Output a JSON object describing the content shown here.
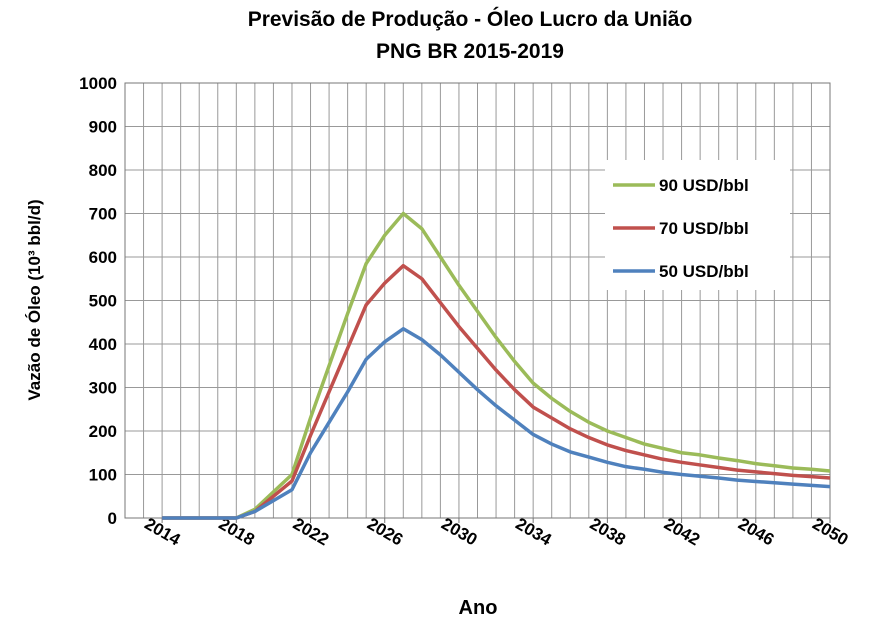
{
  "chart_data": {
    "type": "line",
    "title": "Previsão de Produção - Óleo Lucro da União",
    "subtitle": "PNG BR 2015-2019",
    "x_label": "Ano",
    "y_label": "Vazão de Óleo (10³ bbl/d)",
    "x": [
      2014,
      2015,
      2016,
      2017,
      2018,
      2019,
      2020,
      2021,
      2022,
      2023,
      2024,
      2025,
      2026,
      2027,
      2028,
      2029,
      2030,
      2031,
      2032,
      2033,
      2034,
      2035,
      2036,
      2037,
      2038,
      2039,
      2040,
      2041,
      2042,
      2043,
      2044,
      2045,
      2046,
      2047,
      2048,
      2049,
      2050
    ],
    "series": [
      {
        "name": "90 USD/bbl",
        "color": "#9bbb59",
        "values": [
          0,
          0,
          0,
          0,
          0,
          20,
          60,
          100,
          230,
          350,
          470,
          585,
          650,
          700,
          665,
          600,
          535,
          475,
          415,
          360,
          310,
          275,
          245,
          220,
          200,
          185,
          170,
          160,
          150,
          145,
          138,
          132,
          125,
          120,
          115,
          112,
          108
        ]
      },
      {
        "name": "70 USD/bbl",
        "color": "#c0504d",
        "values": [
          0,
          0,
          0,
          0,
          0,
          15,
          50,
          85,
          190,
          290,
          390,
          490,
          540,
          580,
          550,
          495,
          440,
          390,
          340,
          295,
          255,
          230,
          205,
          185,
          168,
          155,
          145,
          135,
          128,
          122,
          116,
          110,
          106,
          102,
          98,
          95,
          92
        ]
      },
      {
        "name": "50 USD/bbl",
        "color": "#4f81bd",
        "values": [
          0,
          0,
          0,
          0,
          0,
          15,
          40,
          65,
          150,
          220,
          290,
          365,
          405,
          435,
          410,
          375,
          335,
          295,
          258,
          225,
          192,
          170,
          152,
          140,
          128,
          118,
          112,
          105,
          100,
          96,
          92,
          87,
          84,
          81,
          78,
          75,
          72
        ]
      }
    ],
    "xlim": [
      2012,
      2050
    ],
    "xticks": [
      2014,
      2018,
      2022,
      2026,
      2030,
      2034,
      2038,
      2042,
      2046,
      2050
    ],
    "xminor_ticks": [
      2012,
      2013,
      2014,
      2015,
      2016,
      2017,
      2018,
      2019,
      2020,
      2021,
      2022,
      2023,
      2024,
      2025,
      2026,
      2027,
      2028,
      2029,
      2030,
      2031,
      2032,
      2033,
      2034,
      2035,
      2036,
      2037,
      2038,
      2039,
      2040,
      2041,
      2042,
      2043,
      2044,
      2045,
      2046,
      2047,
      2048,
      2049,
      2050
    ],
    "ylim": [
      0,
      1000
    ],
    "yticks": [
      0,
      100,
      200,
      300,
      400,
      500,
      600,
      700,
      800,
      900,
      1000
    ],
    "grid": true,
    "legend": "upper right"
  }
}
